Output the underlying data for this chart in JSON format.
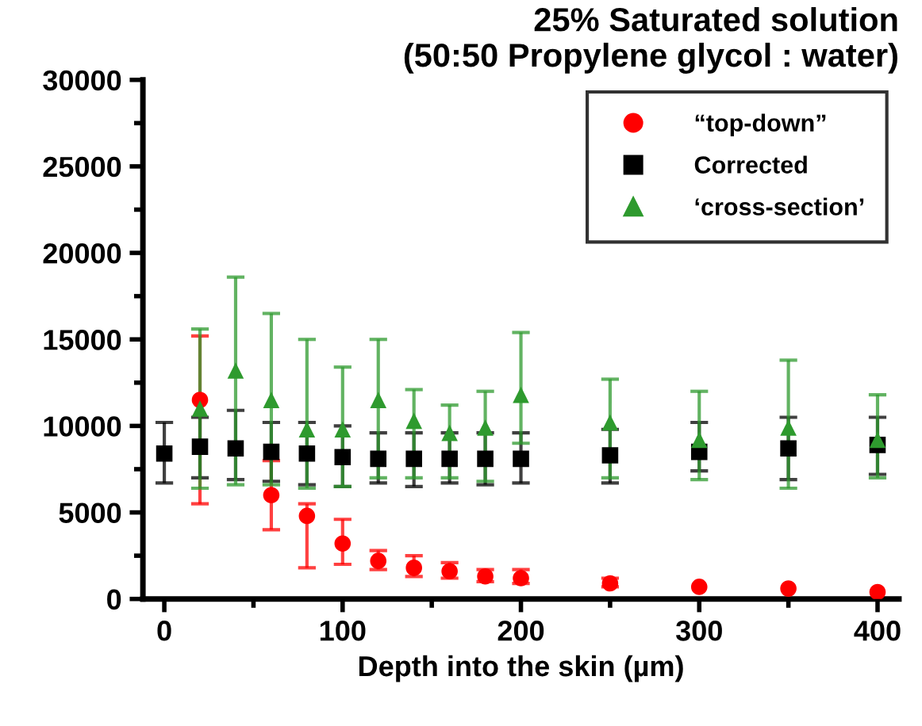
{
  "chart_data": {
    "type": "scatter",
    "title": "25% Saturated solution\n(50:50 Propylene glycol : water)",
    "xlabel": "Depth into the skin (µm)",
    "xlim": [
      -12,
      412
    ],
    "xticks": [
      0,
      100,
      200,
      300,
      400
    ],
    "ylim": [
      0,
      30000
    ],
    "yticks": [
      0,
      5000,
      10000,
      15000,
      20000,
      25000,
      30000
    ],
    "grid": false,
    "legend": "top right",
    "series": [
      {
        "name": "“top-down”",
        "marker": "circle",
        "color": "#ff0000",
        "x": [
          20,
          60,
          80,
          100,
          120,
          140,
          160,
          180,
          200,
          250,
          300,
          350,
          400
        ],
        "values": [
          11500,
          6000,
          4800,
          3200,
          2200,
          1800,
          1600,
          1300,
          1200,
          900,
          700,
          600,
          400
        ],
        "errors": [
          [
            5500,
            15200
          ],
          [
            4000,
            8000
          ],
          [
            1800,
            5500
          ],
          [
            2000,
            4600
          ],
          [
            1700,
            2800
          ],
          [
            1300,
            2500
          ],
          [
            1200,
            2100
          ],
          [
            1000,
            1700
          ],
          [
            900,
            1700
          ],
          [
            700,
            1200
          ],
          null,
          null,
          null
        ]
      },
      {
        "name": "Corrected",
        "marker": "square",
        "color": "#000000",
        "x": [
          0,
          20,
          40,
          60,
          80,
          100,
          120,
          140,
          160,
          180,
          200,
          250,
          300,
          350,
          400
        ],
        "values": [
          8400,
          8800,
          8700,
          8500,
          8400,
          8200,
          8100,
          8100,
          8100,
          8100,
          8100,
          8300,
          8500,
          8700,
          8900
        ],
        "errors": [
          [
            6700,
            10200
          ],
          [
            7000,
            10500
          ],
          [
            6900,
            10900
          ],
          [
            6800,
            10200
          ],
          [
            6600,
            10200
          ],
          [
            6500,
            10000
          ],
          [
            6700,
            9600
          ],
          [
            6500,
            9600
          ],
          [
            6700,
            9600
          ],
          [
            6600,
            9600
          ],
          [
            6700,
            9600
          ],
          [
            6700,
            9800
          ],
          [
            7400,
            10200
          ],
          [
            6900,
            10500
          ],
          [
            7200,
            10500
          ]
        ]
      },
      {
        "name": "‘cross-section’",
        "marker": "triangle",
        "color": "#2e9a2e",
        "x": [
          20,
          40,
          60,
          80,
          100,
          120,
          140,
          160,
          180,
          200,
          250,
          300,
          350,
          400
        ],
        "values": [
          11000,
          13200,
          11500,
          9800,
          9800,
          11500,
          10300,
          9600,
          9900,
          11800,
          10200,
          9200,
          9900,
          9200
        ],
        "errors": [
          [
            6400,
            15600
          ],
          [
            6600,
            18600
          ],
          [
            6600,
            16500
          ],
          [
            6400,
            15000
          ],
          [
            6500,
            13400
          ],
          [
            7000,
            15000
          ],
          [
            7000,
            12100
          ],
          [
            7000,
            11200
          ],
          [
            6800,
            12000
          ],
          [
            9000,
            15400
          ],
          [
            7000,
            12700
          ],
          [
            6900,
            12000
          ],
          [
            6400,
            13800
          ],
          [
            7000,
            11800
          ]
        ]
      }
    ]
  }
}
